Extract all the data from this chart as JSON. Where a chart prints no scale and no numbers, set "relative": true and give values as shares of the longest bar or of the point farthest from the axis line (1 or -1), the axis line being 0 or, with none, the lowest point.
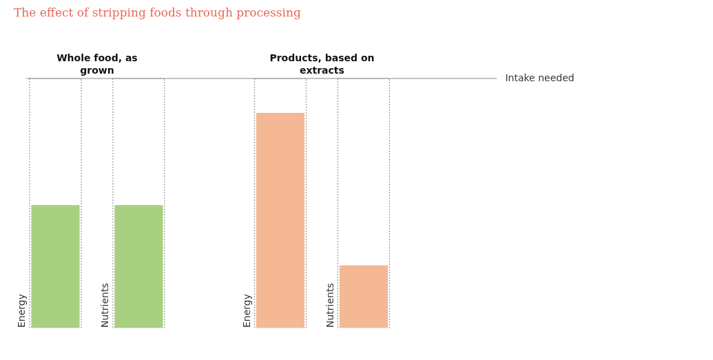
{
  "chart_data": {
    "type": "bar",
    "relative": true,
    "title": "The effect of stripping foods through processing",
    "categories": [
      "Energy",
      "Nutrients",
      "Energy",
      "Nutrients"
    ],
    "values": [
      0.57,
      0.57,
      1,
      0.29
    ],
    "colors": [
      "#a8d080",
      "#a8d080",
      "#f4b894",
      "#f4b894"
    ],
    "annotations": [
      "Whole food, as grown",
      "Products, based on extracts"
    ],
    "ref_lines": [
      {
        "axis": "y",
        "value": 1.16,
        "label": "Intake needed",
        "color": "#888888"
      }
    ]
  }
}
